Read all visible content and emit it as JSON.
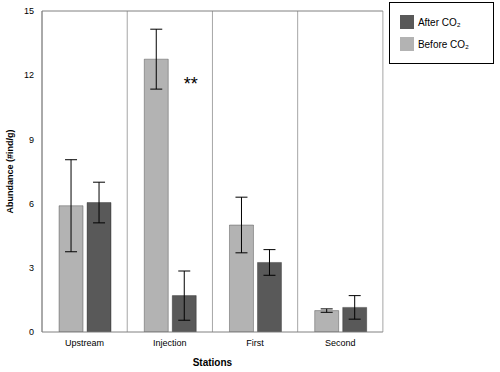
{
  "chart_data": {
    "type": "bar",
    "x_label": "Stations",
    "y_label": "Abundance (#ind/g)",
    "categories": [
      "Upstream",
      "Injection",
      "First",
      "Second"
    ],
    "series": [
      {
        "name": "Before CO₂",
        "color": "#b3b3b3",
        "values": [
          5.9,
          12.75,
          5.0,
          1.0
        ],
        "errors": [
          2.15,
          1.4,
          1.3,
          0.08
        ]
      },
      {
        "name": "After CO₂",
        "color": "#595959",
        "values": [
          6.05,
          1.7,
          3.25,
          1.15
        ],
        "errors": [
          0.95,
          1.15,
          0.6,
          0.55
        ]
      }
    ],
    "ylim": [
      0,
      15
    ],
    "yticks": [
      0,
      3,
      6,
      9,
      12,
      15
    ],
    "legend": "top-right",
    "annotations": [
      {
        "text": "**",
        "category": "Injection",
        "y": 11.6
      }
    ]
  }
}
